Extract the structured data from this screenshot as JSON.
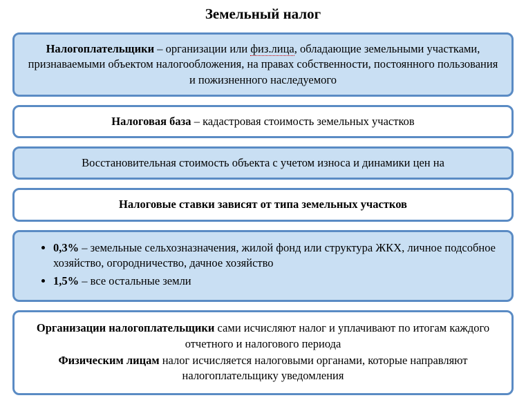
{
  "title": "Земельный налог",
  "boxes": {
    "taxpayers": {
      "label": "Налогоплательщики",
      "underlined": "физ.лица",
      "text_before": " – организации или ",
      "text_after": ", обладающие земельными участками, признаваемыми объектом налогообложения, на правах собственности, постоянного пользования и пожизненного наследуемого"
    },
    "tax_base": {
      "label": "Налоговая база",
      "text": " – кадастровая стоимость земельных участков"
    },
    "restoration": {
      "text": "Восстановительная стоимость объекта с учетом износа и динамики цен на"
    },
    "rates_depend": {
      "text": "Налоговые ставки зависят от типа земельных участков"
    },
    "rates_list": [
      {
        "rate": "0,3%",
        "text": " – земельные сельхозназначения, жилой фонд или структура ЖКХ, личное подсобное хозяйство, огородничество, дачное хозяйство"
      },
      {
        "rate": "1,5%",
        "text": " – все остальные земли"
      }
    ],
    "calculation": {
      "org_label": "Организации налогоплательщики",
      "org_text": " сами исчисляют налог и уплачивают по итогам каждого отчетного и налогового периода",
      "phys_label": "Физическим лицам",
      "phys_text": " налог исчисляется налоговыми органами, которые направляют налогоплательщику уведомления"
    }
  },
  "styling": {
    "border_color": "#5a8bc4",
    "blue_bg": "#c9dff3",
    "white_bg": "#ffffff",
    "text_color": "#000000",
    "title_fontsize": 21,
    "body_fontsize": 16.5,
    "border_width": 3,
    "border_radius": 10
  }
}
